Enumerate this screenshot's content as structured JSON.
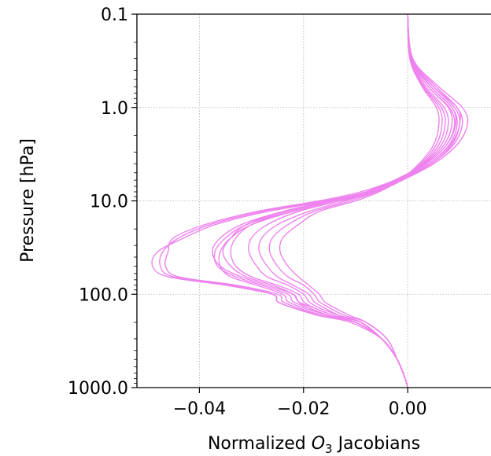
{
  "chart_data": {
    "type": "line",
    "xlabel_prefix": "Normalized ",
    "xlabel_symbol": "O",
    "xlabel_subscript": "3",
    "xlabel_suffix": " Jacobians",
    "ylabel": "Pressure [hPa]",
    "y_scale": "log",
    "y_inverted": true,
    "grid": true,
    "line_color": "#ee82ee",
    "xlim": [
      -0.052,
      0.016
    ],
    "ylim": [
      1000,
      0.1
    ],
    "x_ticks": [
      {
        "value": -0.04,
        "label": "−0.04"
      },
      {
        "value": -0.02,
        "label": "−0.02"
      },
      {
        "value": 0.0,
        "label": "0.00"
      }
    ],
    "y_ticks": [
      {
        "value": 0.1,
        "label": "0.1"
      },
      {
        "value": 1,
        "label": "1.0"
      },
      {
        "value": 10,
        "label": "10.0"
      },
      {
        "value": 100,
        "label": "100.0"
      },
      {
        "value": 1000,
        "label": "1000.0"
      }
    ],
    "pressure_levels": [
      0.1,
      0.3,
      0.6,
      1.0,
      1.5,
      2.5,
      4,
      6,
      8,
      10,
      13,
      18,
      25,
      35,
      50,
      65,
      80,
      100,
      120,
      140,
      170,
      200,
      300,
      500,
      800,
      1000
    ],
    "series": [
      {
        "values": [
          0.0,
          0.0008,
          0.0045,
          0.0085,
          0.0095,
          0.008,
          0.004,
          -0.002,
          -0.008,
          -0.016,
          -0.028,
          -0.038,
          -0.044,
          -0.047,
          -0.0475,
          -0.045,
          -0.034,
          -0.026,
          -0.025,
          -0.022,
          -0.016,
          -0.01,
          -0.005,
          -0.002,
          -0.0005,
          0.0
        ]
      },
      {
        "values": [
          0.0,
          0.0007,
          0.004,
          0.008,
          0.009,
          0.0075,
          0.0035,
          -0.0025,
          -0.009,
          -0.017,
          -0.029,
          -0.039,
          -0.045,
          -0.046,
          -0.0465,
          -0.044,
          -0.033,
          -0.025,
          -0.024,
          -0.021,
          -0.016,
          -0.01,
          -0.005,
          -0.002,
          -0.0005,
          0.0
        ]
      },
      {
        "values": [
          0.0,
          0.0008,
          0.005,
          0.0095,
          0.01,
          0.0085,
          0.0045,
          -0.0015,
          -0.007,
          -0.015,
          -0.027,
          -0.037,
          -0.043,
          -0.048,
          -0.049,
          -0.046,
          -0.035,
          -0.026,
          -0.025,
          -0.022,
          -0.017,
          -0.011,
          -0.005,
          -0.002,
          -0.0005,
          0.0
        ]
      },
      {
        "values": [
          0.0,
          0.001,
          0.006,
          0.0105,
          0.0115,
          0.0095,
          0.005,
          -0.001,
          -0.006,
          -0.013,
          -0.022,
          -0.03,
          -0.034,
          -0.036,
          -0.036,
          -0.034,
          -0.029,
          -0.024,
          -0.023,
          -0.02,
          -0.015,
          -0.01,
          -0.005,
          -0.002,
          -0.0005,
          0.0
        ]
      },
      {
        "values": [
          0.0,
          0.0009,
          0.0055,
          0.0095,
          0.0105,
          0.0088,
          0.0045,
          -0.0015,
          -0.007,
          -0.014,
          -0.023,
          -0.031,
          -0.035,
          -0.037,
          -0.0365,
          -0.033,
          -0.028,
          -0.023,
          -0.022,
          -0.019,
          -0.015,
          -0.01,
          -0.005,
          -0.002,
          -0.0005,
          0.0
        ]
      },
      {
        "values": [
          0.0,
          0.0008,
          0.005,
          0.009,
          0.01,
          0.0082,
          0.004,
          -0.002,
          -0.0075,
          -0.0145,
          -0.024,
          -0.032,
          -0.036,
          -0.0375,
          -0.036,
          -0.032,
          -0.027,
          -0.022,
          -0.021,
          -0.019,
          -0.015,
          -0.01,
          -0.005,
          -0.002,
          -0.0005,
          0.0
        ]
      },
      {
        "values": [
          0.0,
          0.0007,
          0.0045,
          0.0085,
          0.0092,
          0.0075,
          0.0035,
          -0.0025,
          -0.008,
          -0.015,
          -0.024,
          -0.031,
          -0.034,
          -0.0355,
          -0.034,
          -0.031,
          -0.026,
          -0.022,
          -0.021,
          -0.018,
          -0.014,
          -0.009,
          -0.005,
          -0.002,
          -0.0005,
          0.0
        ]
      },
      {
        "values": [
          0.0,
          0.0006,
          0.004,
          0.0078,
          0.0085,
          0.007,
          0.0032,
          -0.0025,
          -0.008,
          -0.0145,
          -0.023,
          -0.03,
          -0.033,
          -0.034,
          -0.033,
          -0.03,
          -0.025,
          -0.021,
          -0.02,
          -0.018,
          -0.014,
          -0.009,
          -0.005,
          -0.002,
          -0.0005,
          0.0
        ]
      },
      {
        "values": [
          0.0,
          0.0006,
          0.0035,
          0.007,
          0.0078,
          0.0065,
          0.003,
          -0.002,
          -0.007,
          -0.013,
          -0.021,
          -0.027,
          -0.03,
          -0.0305,
          -0.029,
          -0.027,
          -0.023,
          -0.02,
          -0.019,
          -0.017,
          -0.013,
          -0.009,
          -0.005,
          -0.002,
          -0.0005,
          0.0
        ]
      },
      {
        "values": [
          0.0,
          0.0005,
          0.0032,
          0.0065,
          0.0072,
          0.006,
          0.0028,
          -0.002,
          -0.0065,
          -0.012,
          -0.019,
          -0.025,
          -0.028,
          -0.0285,
          -0.027,
          -0.025,
          -0.022,
          -0.019,
          -0.018,
          -0.016,
          -0.013,
          -0.009,
          -0.005,
          -0.002,
          -0.0005,
          0.0
        ]
      },
      {
        "values": [
          0.0,
          0.0005,
          0.003,
          0.006,
          0.0066,
          0.0055,
          0.0025,
          -0.0018,
          -0.006,
          -0.011,
          -0.018,
          -0.023,
          -0.026,
          -0.0265,
          -0.025,
          -0.023,
          -0.02,
          -0.018,
          -0.017,
          -0.015,
          -0.012,
          -0.008,
          -0.004,
          -0.002,
          -0.0005,
          0.0
        ]
      },
      {
        "values": [
          0.0,
          0.0004,
          0.0028,
          0.0055,
          0.006,
          0.005,
          0.0022,
          -0.0015,
          -0.0055,
          -0.01,
          -0.017,
          -0.021,
          -0.024,
          -0.0245,
          -0.023,
          -0.021,
          -0.019,
          -0.017,
          -0.016,
          -0.014,
          -0.011,
          -0.008,
          -0.004,
          -0.002,
          -0.0005,
          0.0
        ]
      }
    ]
  }
}
